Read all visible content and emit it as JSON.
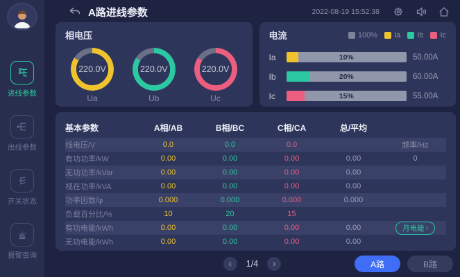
{
  "header": {
    "title": "A路进线参数",
    "timestamp": "2022-08-19 15:52:38"
  },
  "icons": {
    "chevron_left": "‹",
    "chevron_right": "›",
    "pill_chevron": "›"
  },
  "sidebar": {
    "items": [
      {
        "label": "进线参数",
        "active": true
      },
      {
        "label": "出线参数",
        "active": false
      },
      {
        "label": "开关状态",
        "active": false
      },
      {
        "label": "报警查询",
        "active": false
      }
    ]
  },
  "voltage_panel": {
    "title": "相电压",
    "ring_rest_color": "#6b7087",
    "gauges": [
      {
        "value": "220.0V",
        "label": "Ua",
        "color": "#efc32d",
        "ring_percent": 84
      },
      {
        "value": "220.0V",
        "label": "Ub",
        "color": "#2bc8a1",
        "ring_percent": 84
      },
      {
        "value": "220.0V",
        "label": "Uc",
        "color": "#eb5e80",
        "ring_percent": 84
      }
    ]
  },
  "current_panel": {
    "title": "电流",
    "track_color": "#9097ab",
    "legend": [
      {
        "label": "100%",
        "color": "#7d8398"
      },
      {
        "label": "Ia",
        "color": "#efc32d"
      },
      {
        "label": "Ib",
        "color": "#2bc8a1"
      },
      {
        "label": "Ic",
        "color": "#eb5e80"
      }
    ],
    "bars": [
      {
        "label": "Ia",
        "percent": 10,
        "percent_label": "10%",
        "value": "50.00A",
        "color": "#efc32d"
      },
      {
        "label": "Ib",
        "percent": 20,
        "percent_label": "20%",
        "value": "60.00A",
        "color": "#2bc8a1"
      },
      {
        "label": "Ic",
        "percent": 15,
        "percent_label": "15%",
        "value": "55.00A",
        "color": "#eb5e80"
      }
    ]
  },
  "table": {
    "headers": {
      "name": "基本参数",
      "col_a": "A相/AB",
      "col_b": "B相/BC",
      "col_c": "C相/CA",
      "col_total": "总/平均",
      "col_extra": ""
    },
    "rows": [
      {
        "label": "线电压/V",
        "a": "0.0",
        "b": "0.0",
        "c": "0.0",
        "total": "",
        "extra": "频率/Hz"
      },
      {
        "label": "有功功率/kW",
        "a": "0.00",
        "b": "0.00",
        "c": "0.00",
        "total": "0.00",
        "extra": "0"
      },
      {
        "label": "无功功率/kVar",
        "a": "0.00",
        "b": "0.00",
        "c": "0.00",
        "total": "0.00",
        "extra": ""
      },
      {
        "label": "视在功率/kVA",
        "a": "0.00",
        "b": "0.00",
        "c": "0.00",
        "total": "0.00",
        "extra": ""
      },
      {
        "label": "功率因数/φ",
        "a": "0.000",
        "b": "0.000",
        "c": "0.000",
        "total": "0.000",
        "extra": ""
      },
      {
        "label": "负载百分比/%",
        "a": "10",
        "b": "20",
        "c": "15",
        "total": "",
        "extra": ""
      },
      {
        "label": "有功电能/kWh",
        "a": "0.00",
        "b": "0.00",
        "c": "0.00",
        "total": "0.00",
        "extra": ""
      },
      {
        "label": "无功电能/kWh",
        "a": "0.00",
        "b": "0.00",
        "c": "0.00",
        "total": "0.00",
        "extra": ""
      }
    ],
    "month_energy_button": "月电能"
  },
  "footer": {
    "page": "1/4",
    "line_buttons": [
      {
        "label": "A路",
        "active": true
      },
      {
        "label": "B路",
        "active": false
      }
    ]
  },
  "colors": {
    "accent_blue": "#3f6df5",
    "phase_a_yellow": "#efc32d",
    "phase_b_teal": "#2bc8a1",
    "phase_c_pink": "#eb5e80"
  }
}
